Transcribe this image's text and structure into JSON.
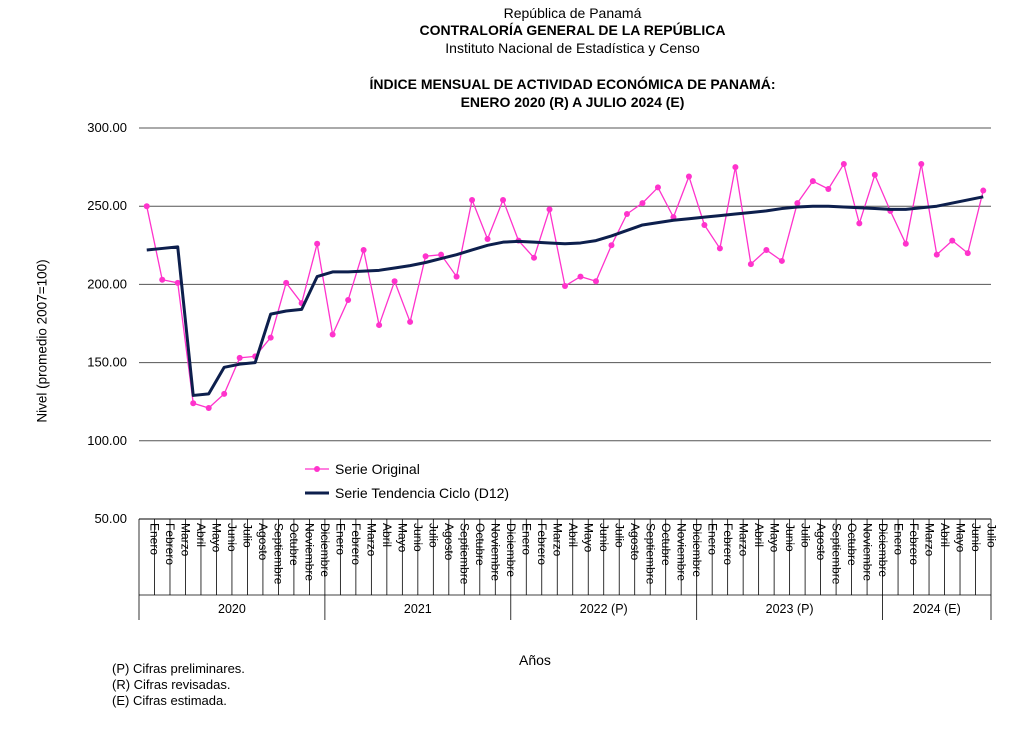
{
  "header": {
    "line1": "República de Panamá",
    "line2": "CONTRALORÍA  GENERAL DE LA REPÚBLICA",
    "line3": "Instituto Nacional de Estadística y Censo"
  },
  "notes": [
    "(P) Cifras preliminares.",
    "(R) Cifras revisadas.",
    "(E) Cifras estimada."
  ],
  "chart_data": {
    "type": "line",
    "title": "ÍNDICE MENSUAL DE ACTIVIDAD ECONÓMICA DE PANAMÁ:",
    "subtitle": "ENERO 2020 (R) A JULIO 2024 (E)",
    "xlabel": "Años",
    "ylabel": "Nivel (promedio 2007=100)",
    "ylim": [
      50,
      300
    ],
    "yticks": [
      "50.00",
      "100.00",
      "150.00",
      "200.00",
      "250.00",
      "300.00"
    ],
    "grid": true,
    "legend_position": "inside-bottom-left",
    "years": [
      {
        "label": "2020",
        "months": 12
      },
      {
        "label": "2021",
        "months": 12
      },
      {
        "label": "2022 (P)",
        "months": 12
      },
      {
        "label": "2023 (P)",
        "months": 12
      },
      {
        "label": "2024 (E)",
        "months": 7
      }
    ],
    "categories": [
      "Enero",
      "Febrero",
      "Marzo",
      "Abril",
      "Mayo",
      "Junio",
      "Julio",
      "Agosto",
      "Septiembre",
      "Octubre",
      "Noviembre",
      "Diciembre",
      "Enero",
      "Febrero",
      "Marzo",
      "Abril",
      "Mayo",
      "Junio",
      "Julio",
      "Agosto",
      "Septiembre",
      "Octubre",
      "Noviembre",
      "Diciembre",
      "Enero",
      "Febrero",
      "Marzo",
      "Abril",
      "Mayo",
      "Junio",
      "Julio",
      "Agosto",
      "Septiembre",
      "Octubre",
      "Noviembre",
      "Diciembre",
      "Enero",
      "Febrero",
      "Marzo",
      "Abril",
      "Mayo",
      "Junio",
      "Julio",
      "Agosto",
      "Septiembre",
      "Octubre",
      "Noviembre",
      "Diciembre",
      "Enero",
      "Febrero",
      "Marzo",
      "Abril",
      "Mayo",
      "Junio",
      "Julio"
    ],
    "series": [
      {
        "name": "Serie Original",
        "color": "#ff33cc",
        "marker": "circle",
        "values": [
          250,
          203,
          201,
          124,
          121,
          130,
          153,
          154,
          166,
          201,
          188,
          226,
          168,
          190,
          222,
          174,
          202,
          176,
          218,
          219,
          205,
          254,
          229,
          254,
          228,
          217,
          248,
          199,
          205,
          202,
          225,
          245,
          252,
          262,
          243,
          269,
          238,
          223,
          275,
          213,
          222,
          215,
          252,
          266,
          261,
          277,
          239,
          270,
          247,
          226,
          277,
          219,
          228,
          220,
          260
        ]
      },
      {
        "name": "Serie Tendencia Ciclo (D12)",
        "color": "#0d1f4d",
        "marker": "none",
        "values": [
          222,
          223,
          224,
          129,
          130,
          147,
          149,
          150,
          181,
          183,
          184,
          205,
          208,
          208,
          208.5,
          209,
          210.5,
          212,
          214,
          216.5,
          219,
          222,
          225,
          227,
          227.5,
          227,
          226.5,
          226,
          226.5,
          228,
          231,
          234.5,
          238,
          239.5,
          241,
          242,
          243,
          244,
          245,
          246,
          247,
          248.5,
          249.5,
          250,
          250,
          249.5,
          249,
          248.5,
          248,
          248,
          249,
          250,
          252,
          254,
          256
        ]
      }
    ]
  }
}
